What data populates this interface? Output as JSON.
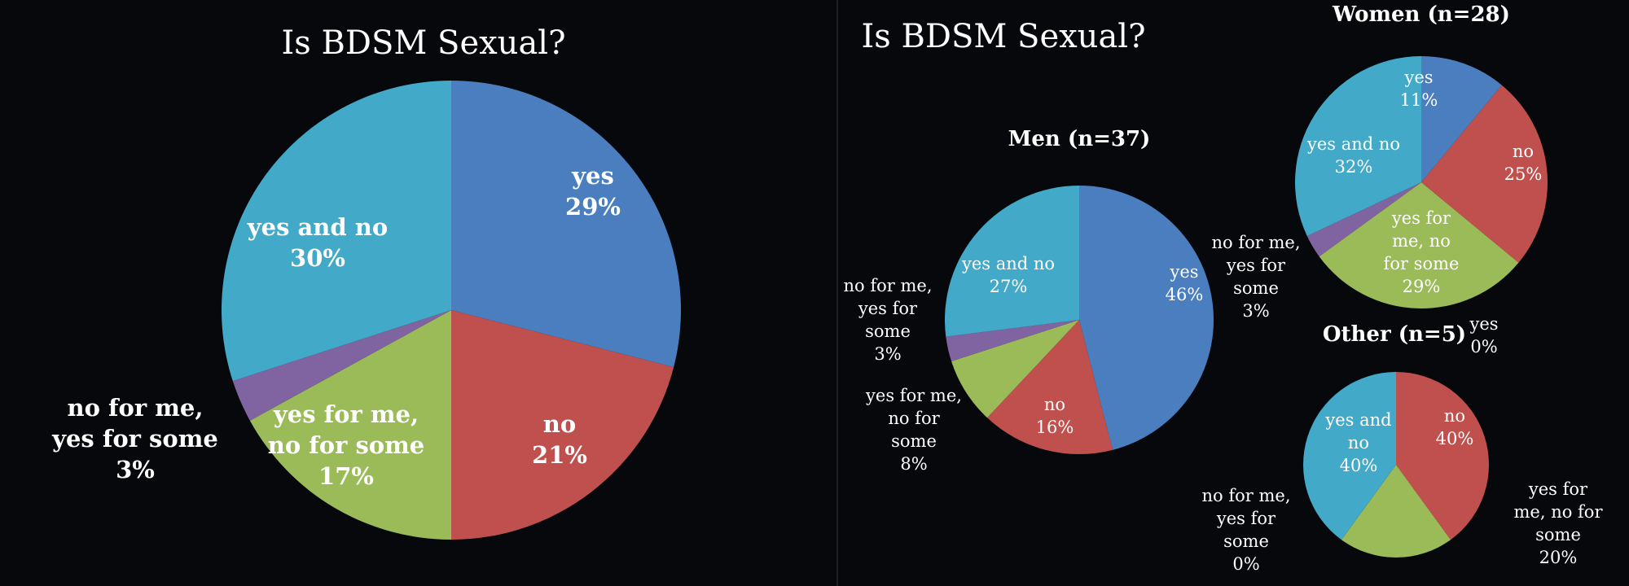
{
  "chart_data": [
    {
      "type": "pie",
      "title": "Is BDSM Sexual?",
      "categories": [
        "yes",
        "no",
        "yes for me, no for some",
        "no for me, yes for some",
        "yes and no"
      ],
      "values": [
        29,
        21,
        17,
        3,
        30
      ],
      "labels": [
        [
          "yes",
          "29%"
        ],
        [
          "no",
          "21%"
        ],
        [
          "yes for me,",
          "no for some",
          "17%"
        ],
        [
          "no for me,",
          "yes for some",
          "3%"
        ],
        [
          "yes and no",
          "30%"
        ]
      ]
    },
    {
      "type": "pie",
      "title": "Is BDSM Sexual?",
      "subtitle": "Men (n=37)",
      "categories": [
        "yes",
        "no",
        "yes for me, no for some",
        "no for me, yes for some",
        "yes and no"
      ],
      "values": [
        46,
        16,
        8,
        3,
        27
      ],
      "labels": [
        [
          "yes",
          "46%"
        ],
        [
          "no",
          "16%"
        ],
        [
          "yes for me,",
          "no for",
          "some",
          "8%"
        ],
        [
          "no for me,",
          "yes for",
          "some",
          "3%"
        ],
        [
          "yes and no",
          "27%"
        ]
      ]
    },
    {
      "type": "pie",
      "subtitle": "Women (n=28)",
      "categories": [
        "yes",
        "no",
        "yes for me, no for some",
        "no for me, yes for some",
        "yes and no"
      ],
      "values": [
        11,
        25,
        29,
        3,
        32
      ],
      "labels": [
        [
          "yes",
          "11%"
        ],
        [
          "no",
          "25%"
        ],
        [
          "yes for",
          "me, no",
          "for some",
          "29%"
        ],
        [
          "no for me,",
          "yes for",
          "some",
          "3%"
        ],
        [
          "yes and no",
          "32%"
        ]
      ]
    },
    {
      "type": "pie",
      "subtitle": "Other (n=5)",
      "categories": [
        "yes",
        "no",
        "yes for me, no for some",
        "no for me, yes for some",
        "yes and no"
      ],
      "values": [
        0,
        40,
        20,
        0,
        40
      ],
      "labels": [
        [
          "yes",
          "0%"
        ],
        [
          "no",
          "40%"
        ],
        [
          "yes for",
          "me, no for",
          "some",
          "20%"
        ],
        [
          "no for me,",
          "yes for",
          "some",
          "0%"
        ],
        [
          "yes and",
          "no",
          "40%"
        ]
      ]
    }
  ],
  "colors": [
    "#4a7ebf",
    "#c0504d",
    "#9bbb59",
    "#8064a2",
    "#42a9c8"
  ]
}
